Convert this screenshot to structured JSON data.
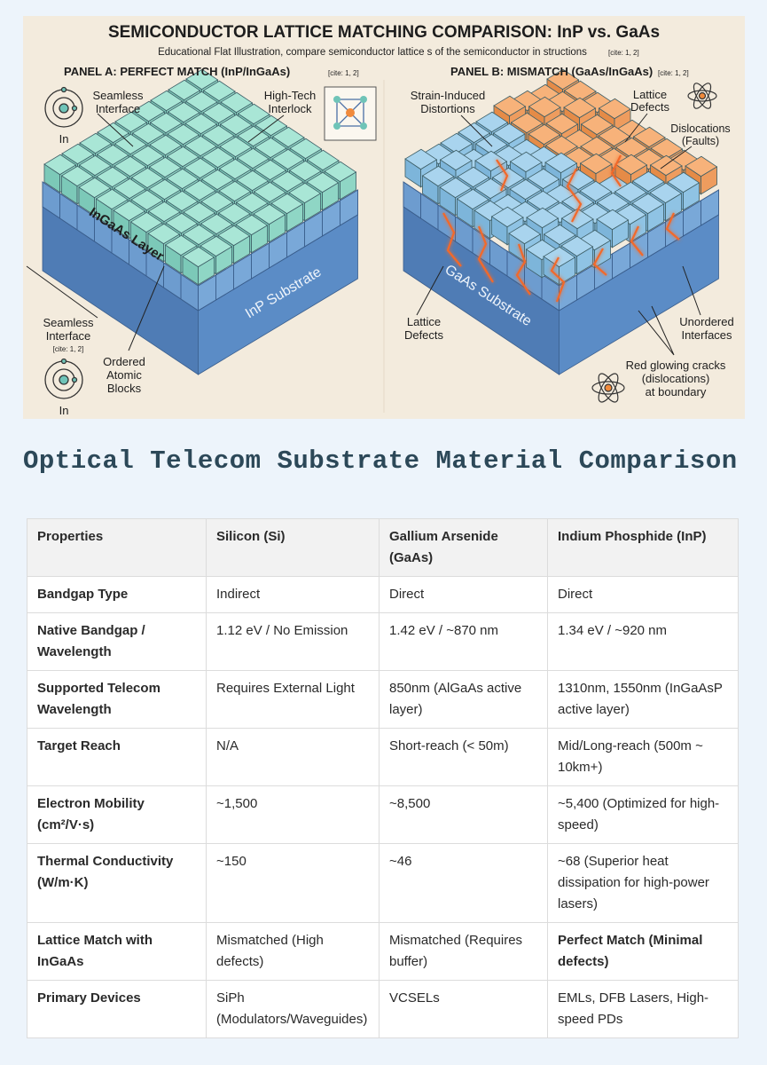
{
  "illustration": {
    "title": "SEMICONDUCTOR LATTICE MATCHING COMPARISON: InP vs. GaAs",
    "subtitle": "Educational Flat Illustration, compare semiconductor lattice s of the semiconductor in  structions",
    "subtitle_cite": "[cite: 1, 2]",
    "panel_a": {
      "heading": "PANEL A: PERFECT MATCH (InP/InGaAs)",
      "heading_cite": "[cite: 1, 2]",
      "top_left_label": [
        "Seamless",
        "Interface"
      ],
      "top_right_label": [
        "High-Tech",
        "Interlock"
      ],
      "atom_label_top": "In",
      "layer_label": "InGaAs Layer",
      "substrate_label": "InP Substrate",
      "bottom_left_label": [
        "Seamless",
        "Interface"
      ],
      "bottom_left_cite": "[cite: 1, 2]",
      "bottom_label": [
        "Ordered",
        "Atomic",
        "Blocks"
      ],
      "atom_label_bottom": "In"
    },
    "panel_b": {
      "heading": "PANEL B: MISMATCH (GaAs/InGaAs)",
      "heading_cite": "[cite: 1, 2]",
      "top_left_label": [
        "Strain-Induced",
        "Distortions"
      ],
      "top_right_label": [
        "Lattice",
        "Defects"
      ],
      "right_label": [
        "Dislocations",
        "(Faults)"
      ],
      "substrate_label": "GaAs Substrate",
      "bottom_left_label": [
        "Lattice",
        "Defects"
      ],
      "bottom_right_label": [
        "Unordered",
        "Interfaces"
      ],
      "bottom_label": [
        "Red glowing cracks",
        "(dislocations)",
        "at boundary"
      ]
    }
  },
  "heading": "Optical Telecom Substrate Material Comparison",
  "table": {
    "headers": [
      "Properties",
      "Silicon (Si)",
      "Gallium Arsenide (GaAs)",
      "Indium Phosphide (InP)"
    ],
    "rows": [
      [
        "Bandgap Type",
        "Indirect",
        "Direct",
        "Direct"
      ],
      [
        "Native Bandgap / Wavelength",
        "1.12 eV / No Emission",
        "1.42 eV / ~870 nm",
        "1.34 eV / ~920 nm"
      ],
      [
        "Supported Telecom Wavelength",
        "Requires External Light",
        "850nm (AlGaAs active layer)",
        "1310nm, 1550nm (InGaAsP active layer)"
      ],
      [
        "Target Reach",
        "N/A",
        "Short-reach (< 50m)",
        "Mid/Long-reach (500m ~ 10km+)"
      ],
      [
        "Electron Mobility (cm²/V·s)",
        "~1,500",
        "~8,500",
        "~5,400 (Optimized for high-speed)"
      ],
      [
        "Thermal Conductivity (W/m·K)",
        "~150",
        "~46",
        "~68 (Superior heat dissipation for high-power lasers)"
      ],
      [
        "Lattice Match with InGaAs",
        "Mismatched (High defects)",
        "Mismatched (Requires buffer)",
        "Perfect Match (Minimal defects)"
      ],
      [
        "Primary Devices",
        "SiPh (Modulators/Waveguides)",
        "VCSELs",
        "EMLs, DFB Lasers, High-speed PDs"
      ]
    ]
  }
}
